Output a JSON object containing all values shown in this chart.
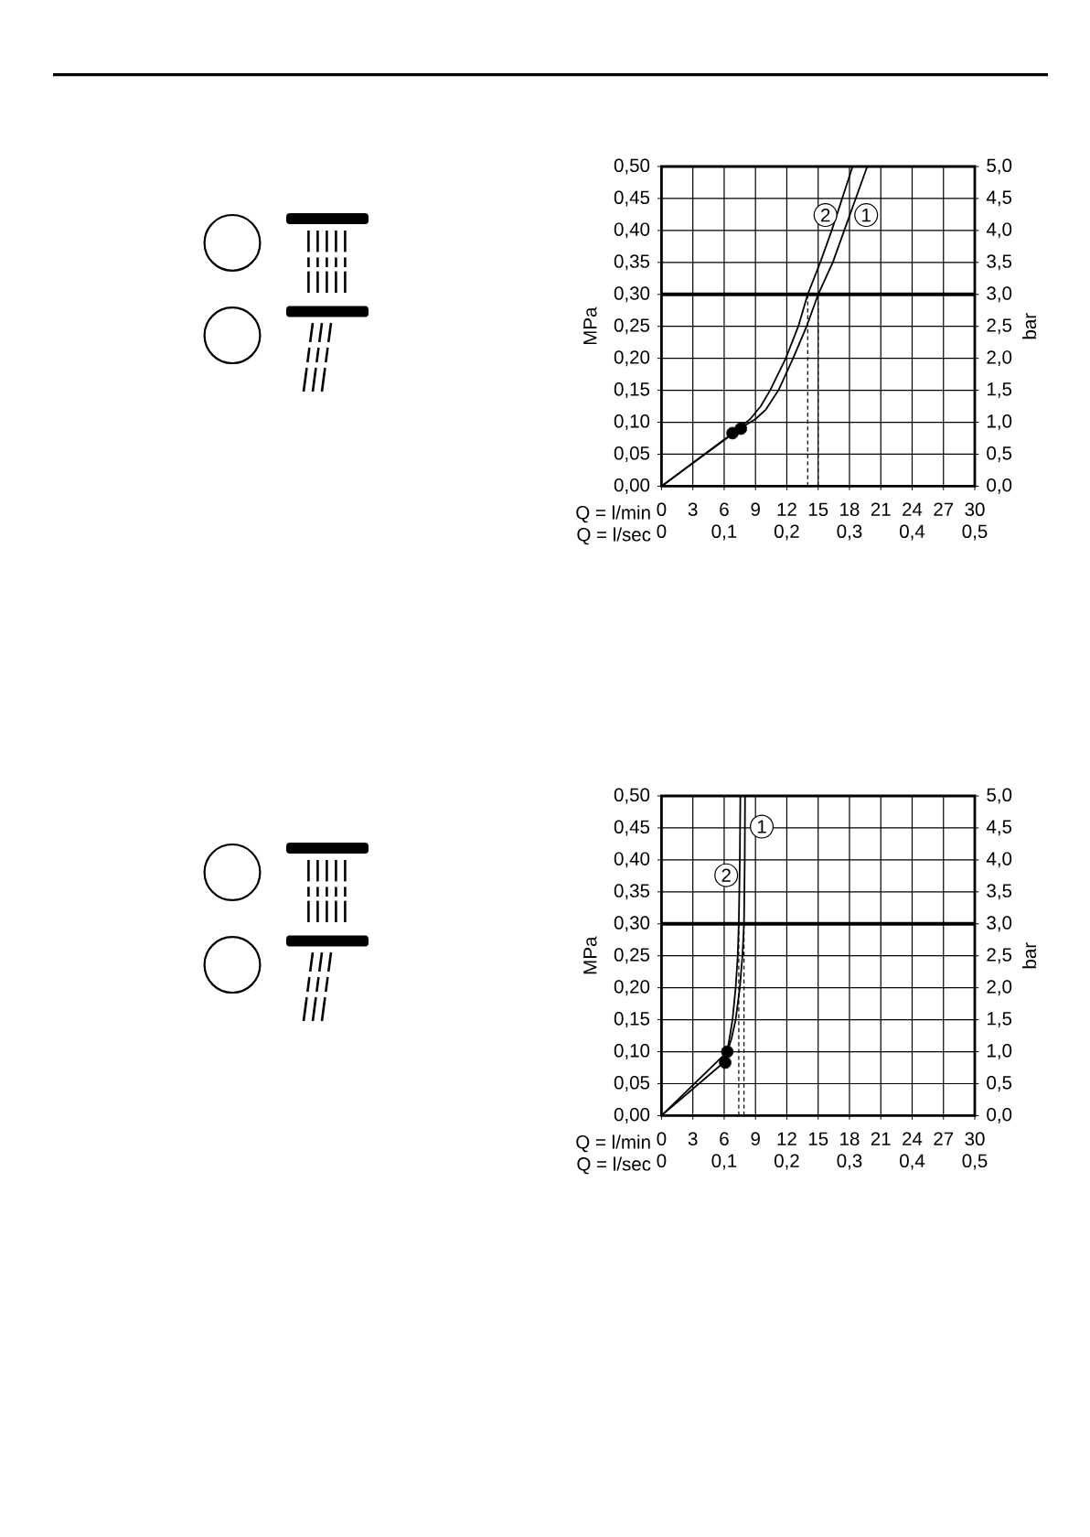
{
  "chart_data": [
    {
      "type": "line",
      "xlabel": "Q = l/min",
      "x2label": "Q = l/sec",
      "ylabel": "MPa",
      "y2label": "bar",
      "xlim": [
        0,
        30
      ],
      "xticks": [
        0,
        3,
        6,
        9,
        12,
        15,
        18,
        21,
        24,
        27,
        30
      ],
      "x2lim": [
        0,
        0.5
      ],
      "x2ticks": [
        0,
        {
          "value": 0.1,
          "label": "0,1"
        },
        {
          "value": 0.2,
          "label": "0,2"
        },
        {
          "value": 0.3,
          "label": "0,3"
        },
        {
          "value": 0.4,
          "label": "0,4"
        },
        {
          "value": 0.5,
          "label": "0,5"
        }
      ],
      "ylim": [
        0,
        0.5
      ],
      "yticks": [
        {
          "value": 0,
          "label": "0,00"
        },
        {
          "value": 0.05,
          "label": "0,05"
        },
        {
          "value": 0.1,
          "label": "0,10"
        },
        {
          "value": 0.15,
          "label": "0,15"
        },
        {
          "value": 0.2,
          "label": "0,20"
        },
        {
          "value": 0.25,
          "label": "0,25"
        },
        {
          "value": 0.3,
          "label": "0,30"
        },
        {
          "value": 0.35,
          "label": "0,35"
        },
        {
          "value": 0.4,
          "label": "0,40"
        },
        {
          "value": 0.45,
          "label": "0,45"
        },
        {
          "value": 0.5,
          "label": "0,50"
        }
      ],
      "y2lim": [
        0,
        5
      ],
      "y2ticks": [
        {
          "value": 0,
          "label": "0,0"
        },
        {
          "value": 0.5,
          "label": "0,5"
        },
        {
          "value": 1,
          "label": "1,0"
        },
        {
          "value": 1.5,
          "label": "1,5"
        },
        {
          "value": 2,
          "label": "2,0"
        },
        {
          "value": 2.5,
          "label": "2,5"
        },
        {
          "value": 3,
          "label": "3,0"
        },
        {
          "value": 3.5,
          "label": "3,5"
        },
        {
          "value": 4,
          "label": "4,0"
        },
        {
          "value": 4.5,
          "label": "4,5"
        },
        {
          "value": 5,
          "label": "5,0"
        }
      ],
      "grid": true,
      "series": [
        {
          "color": "#000000",
          "x": [
            0,
            7.5,
            9,
            10,
            11.2,
            12.6,
            13.9,
            15,
            16.4,
            17.5,
            18.6,
            19.7
          ],
          "values": [
            0,
            0.09,
            0.105,
            0.12,
            0.15,
            0.2,
            0.25,
            0.3,
            0.35,
            0.4,
            0.45,
            0.5
          ]
        },
        {
          "color": "#000000",
          "x": [
            0,
            7,
            8.5,
            9.5,
            10.4,
            11.9,
            13.1,
            14,
            15.2,
            16.3,
            17.3,
            18.3
          ],
          "values": [
            0,
            0.085,
            0.105,
            0.125,
            0.15,
            0.2,
            0.25,
            0.3,
            0.35,
            0.4,
            0.45,
            0.5
          ]
        },
        {
          "type": "scatter",
          "marker": "circle",
          "color": "#000000",
          "x": [
            6.8,
            7.6
          ],
          "values": [
            0.083,
            0.09
          ]
        }
      ],
      "ref_lines": [
        {
          "axis": "y",
          "value": 0.3,
          "color": "#000000"
        },
        {
          "axis": "x",
          "value": 14,
          "line_style": "dashed"
        },
        {
          "axis": "x",
          "value": 15,
          "line_style": "dashed"
        }
      ],
      "annotations": [
        {
          "text": "2",
          "x": 15.7,
          "y": 0.424
        },
        {
          "text": "1",
          "x": 19.6,
          "y": 0.424
        }
      ]
    },
    {
      "type": "line",
      "xlabel": "Q = l/min",
      "x2label": "Q = l/sec",
      "ylabel": "MPa",
      "y2label": "bar",
      "xlim": [
        0,
        30
      ],
      "xticks": [
        0,
        3,
        6,
        9,
        12,
        15,
        18,
        21,
        24,
        27,
        30
      ],
      "x2lim": [
        0,
        0.5
      ],
      "x2ticks": [
        0,
        {
          "value": 0.1,
          "label": "0,1"
        },
        {
          "value": 0.2,
          "label": "0,2"
        },
        {
          "value": 0.3,
          "label": "0,3"
        },
        {
          "value": 0.4,
          "label": "0,4"
        },
        {
          "value": 0.5,
          "label": "0,5"
        }
      ],
      "ylim": [
        0,
        0.5
      ],
      "yticks": [
        {
          "value": 0,
          "label": "0,00"
        },
        {
          "value": 0.05,
          "label": "0,05"
        },
        {
          "value": 0.1,
          "label": "0,10"
        },
        {
          "value": 0.15,
          "label": "0,15"
        },
        {
          "value": 0.2,
          "label": "0,20"
        },
        {
          "value": 0.25,
          "label": "0,25"
        },
        {
          "value": 0.3,
          "label": "0,30"
        },
        {
          "value": 0.35,
          "label": "0,35"
        },
        {
          "value": 0.4,
          "label": "0,40"
        },
        {
          "value": 0.45,
          "label": "0,45"
        },
        {
          "value": 0.5,
          "label": "0,50"
        }
      ],
      "y2lim": [
        0,
        5
      ],
      "y2ticks": [
        {
          "value": 0,
          "label": "0,0"
        },
        {
          "value": 0.5,
          "label": "0,5"
        },
        {
          "value": 1,
          "label": "1,0"
        },
        {
          "value": 1.5,
          "label": "1,5"
        },
        {
          "value": 2,
          "label": "2,0"
        },
        {
          "value": 2.5,
          "label": "2,5"
        },
        {
          "value": 3,
          "label": "3,0"
        },
        {
          "value": 3.5,
          "label": "3,5"
        },
        {
          "value": 4,
          "label": "4,0"
        },
        {
          "value": 4.5,
          "label": "4,5"
        },
        {
          "value": 5,
          "label": "5,0"
        }
      ],
      "grid": true,
      "series": [
        {
          "color": "#000000",
          "x": [
            0,
            6.3,
            6.7,
            7.1,
            7.5,
            7.75,
            7.9,
            7.97,
            8
          ],
          "values": [
            0,
            0.1,
            0.12,
            0.15,
            0.2,
            0.25,
            0.3,
            0.4,
            0.5
          ]
        },
        {
          "color": "#000000",
          "x": [
            0,
            6.1,
            6.5,
            6.8,
            7.1,
            7.3,
            7.4,
            7.5,
            7.55
          ],
          "values": [
            0,
            0.085,
            0.12,
            0.15,
            0.2,
            0.25,
            0.3,
            0.4,
            0.5
          ]
        },
        {
          "type": "scatter",
          "marker": "circle",
          "color": "#000000",
          "x": [
            6.1,
            6.3
          ],
          "values": [
            0.083,
            0.1
          ]
        }
      ],
      "ref_lines": [
        {
          "axis": "y",
          "value": 0.3,
          "color": "#000000"
        },
        {
          "axis": "x",
          "value": 7.4,
          "line_style": "dashed"
        },
        {
          "axis": "x",
          "value": 7.9,
          "line_style": "dashed"
        }
      ],
      "annotations": [
        {
          "text": "1",
          "x": 9.6,
          "y": 0.452
        },
        {
          "text": "2",
          "x": 6.2,
          "y": 0.376
        }
      ]
    }
  ]
}
